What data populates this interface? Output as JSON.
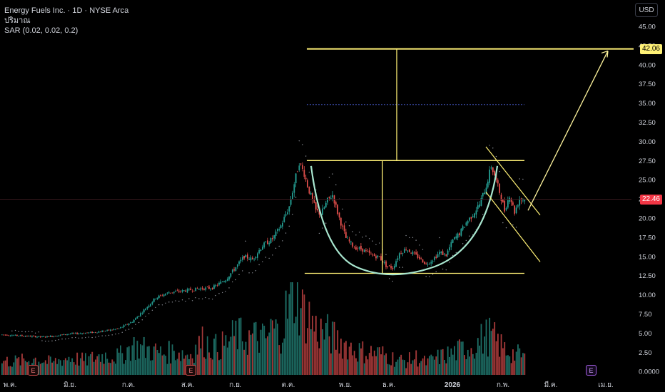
{
  "legend": {
    "title": "Energy Fuels Inc. · 1D · NYSE Arca",
    "volume_label": "ปริมาณ",
    "sar_label": "SAR (0.02, 0.02, 0.2)"
  },
  "currency": "USD",
  "last_price": "22.46",
  "target_price": "42.06",
  "earnings_marker": "E",
  "colors": {
    "up": "#26a69a",
    "down": "#ef5350",
    "drawing": "#fff176",
    "cup": "#a8e6cf",
    "sar": "#9598a1",
    "grid_dots": "#3f51b5"
  },
  "chart_data": {
    "type": "candlestick",
    "x_ticks": [
      "พ.ค.",
      "มิ.ย.",
      "ก.ค.",
      "ส.ค.",
      "ก.ย.",
      "ต.ค.",
      "พ.ย.",
      "ธ.ค.",
      "2026",
      "ก.พ.",
      "มี.ค.",
      "เม.ย."
    ],
    "y_ticks": [
      "45.00",
      "42.50",
      "40.00",
      "37.50",
      "35.00",
      "32.50",
      "30.00",
      "27.50",
      "25.00",
      "22.50",
      "20.00",
      "17.50",
      "15.00",
      "12.50",
      "10.00",
      "7.50",
      "5.00",
      "2.50",
      "0.0000"
    ],
    "price_range": [
      0,
      45
    ],
    "last": 22.46,
    "target": 42.06,
    "resistance": 27.5,
    "support": 12.8,
    "dotted_level": 34.8,
    "price_path": [
      [
        0,
        4.8
      ],
      [
        8,
        4.7
      ],
      [
        16,
        4.6
      ],
      [
        24,
        4.5
      ],
      [
        30,
        4.6
      ],
      [
        40,
        4.9
      ],
      [
        48,
        5.0
      ],
      [
        55,
        5.1
      ],
      [
        62,
        5.3
      ],
      [
        70,
        5.6
      ],
      [
        78,
        6.5
      ],
      [
        85,
        8.0
      ],
      [
        92,
        9.6
      ],
      [
        100,
        10.3
      ],
      [
        108,
        10.5
      ],
      [
        118,
        10.8
      ],
      [
        126,
        10.9
      ],
      [
        134,
        12.0
      ],
      [
        140,
        13.6
      ],
      [
        145,
        15.0
      ],
      [
        150,
        14.6
      ],
      [
        156,
        16.4
      ],
      [
        162,
        17.3
      ],
      [
        167,
        19.0
      ],
      [
        172,
        21.5
      ],
      [
        175,
        24.5
      ],
      [
        178,
        27.3
      ],
      [
        181,
        25.8
      ],
      [
        184,
        23.5
      ],
      [
        188,
        21.0
      ],
      [
        191,
        20.5
      ],
      [
        195,
        22.3
      ],
      [
        198,
        23.0
      ],
      [
        202,
        20.0
      ],
      [
        206,
        17.4
      ],
      [
        211,
        16.2
      ],
      [
        216,
        15.9
      ],
      [
        221,
        15.2
      ],
      [
        226,
        14.9
      ],
      [
        230,
        13.8
      ],
      [
        234,
        13.5
      ],
      [
        238,
        15.4
      ],
      [
        242,
        16.0
      ],
      [
        246,
        15.4
      ],
      [
        250,
        14.8
      ],
      [
        254,
        14.0
      ],
      [
        258,
        14.6
      ],
      [
        262,
        15.5
      ],
      [
        266,
        15.2
      ],
      [
        270,
        17.1
      ],
      [
        274,
        18.0
      ],
      [
        278,
        19.4
      ],
      [
        282,
        20.5
      ],
      [
        286,
        21.8
      ],
      [
        290,
        24.2
      ],
      [
        293,
        26.8
      ],
      [
        295,
        25.6
      ],
      [
        298,
        23.4
      ],
      [
        301,
        21.0
      ],
      [
        304,
        23.0
      ],
      [
        307,
        20.8
      ],
      [
        310,
        22.5
      ],
      [
        313,
        22.46
      ]
    ],
    "volume_range": [
      0,
      12
    ],
    "volume_samples": [
      [
        10,
        1.8
      ],
      [
        20,
        2.1
      ],
      [
        30,
        1.6
      ],
      [
        40,
        2.3
      ],
      [
        50,
        1.9
      ],
      [
        60,
        2.6
      ],
      [
        70,
        2.4
      ],
      [
        78,
        3.8
      ],
      [
        88,
        3.3
      ],
      [
        96,
        2.8
      ],
      [
        104,
        3.1
      ],
      [
        112,
        2.6
      ],
      [
        120,
        4.4
      ],
      [
        128,
        3.6
      ],
      [
        134,
        4.0
      ],
      [
        140,
        5.3
      ],
      [
        146,
        4.8
      ],
      [
        152,
        5.0
      ],
      [
        158,
        4.6
      ],
      [
        162,
        6.2
      ],
      [
        166,
        5.2
      ],
      [
        170,
        8.0
      ],
      [
        174,
        10.2
      ],
      [
        176,
        11.5
      ],
      [
        180,
        8.4
      ],
      [
        184,
        7.6
      ],
      [
        188,
        6.0
      ],
      [
        194,
        5.5
      ],
      [
        200,
        4.6
      ],
      [
        206,
        4.0
      ],
      [
        212,
        3.2
      ],
      [
        218,
        3.0
      ],
      [
        224,
        2.9
      ],
      [
        230,
        2.6
      ],
      [
        236,
        2.0
      ],
      [
        242,
        1.8
      ],
      [
        248,
        2.3
      ],
      [
        254,
        1.6
      ],
      [
        260,
        2.2
      ],
      [
        266,
        2.6
      ],
      [
        272,
        3.0
      ],
      [
        278,
        3.6
      ],
      [
        284,
        4.0
      ],
      [
        288,
        4.8
      ],
      [
        292,
        5.2
      ],
      [
        296,
        4.4
      ],
      [
        300,
        3.5
      ],
      [
        306,
        2.8
      ],
      [
        312,
        2.5
      ]
    ]
  }
}
